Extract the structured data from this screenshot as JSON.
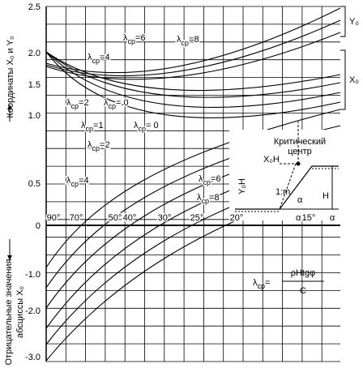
{
  "y_axis": {
    "title": "Координаты X₀ и Y₀",
    "ticks": [
      "2.5",
      "2.0",
      "1.5",
      "1.0",
      "0.5",
      "0",
      "-1.0",
      "-2.0",
      "-3.0"
    ],
    "negative_title": [
      "Отрицательные значения",
      "абсциссы X₀"
    ]
  },
  "slope_angles": [
    "90°",
    "70°",
    "50°",
    "40°",
    "30°",
    "25°",
    "20°",
    "15°",
    "α"
  ],
  "brackets": [
    "Y₀",
    "X₀"
  ],
  "curve_labels": [
    {
      "symbol": "λ",
      "sub": "ср",
      "value": "=6"
    },
    {
      "symbol": "λ",
      "sub": "ср",
      "value": "=8"
    },
    {
      "symbol": "λ",
      "sub": "ср",
      "value": "=4"
    },
    {
      "symbol": "λ",
      "sub": "ср",
      "value": "=2"
    },
    {
      "symbol": "λ",
      "sub": "ср",
      "value": "= 0"
    },
    {
      "symbol": "λ",
      "sub": "ср",
      "value": "= 0"
    },
    {
      "symbol": "λ",
      "sub": "ср",
      "value": "=1"
    },
    {
      "symbol": "λ",
      "sub": "ср",
      "value": "=2"
    },
    {
      "symbol": "λ",
      "sub": "ср",
      "value": "=4"
    },
    {
      "symbol": "λ",
      "sub": "ср",
      "value": "=6"
    },
    {
      "symbol": "λ",
      "sub": "ср",
      "value": "=8"
    }
  ],
  "inset": {
    "title": [
      "Критический",
      "центр"
    ],
    "x_label": "X₀H",
    "y_label": "Y₀H",
    "slope": "1:m",
    "angle": "α",
    "height": "H",
    "angle_axis": "α"
  },
  "formula": {
    "symbol": "λ",
    "sub": "ср",
    "eq": "=",
    "numerator": "ρHtgφ",
    "denominator": "C"
  }
}
